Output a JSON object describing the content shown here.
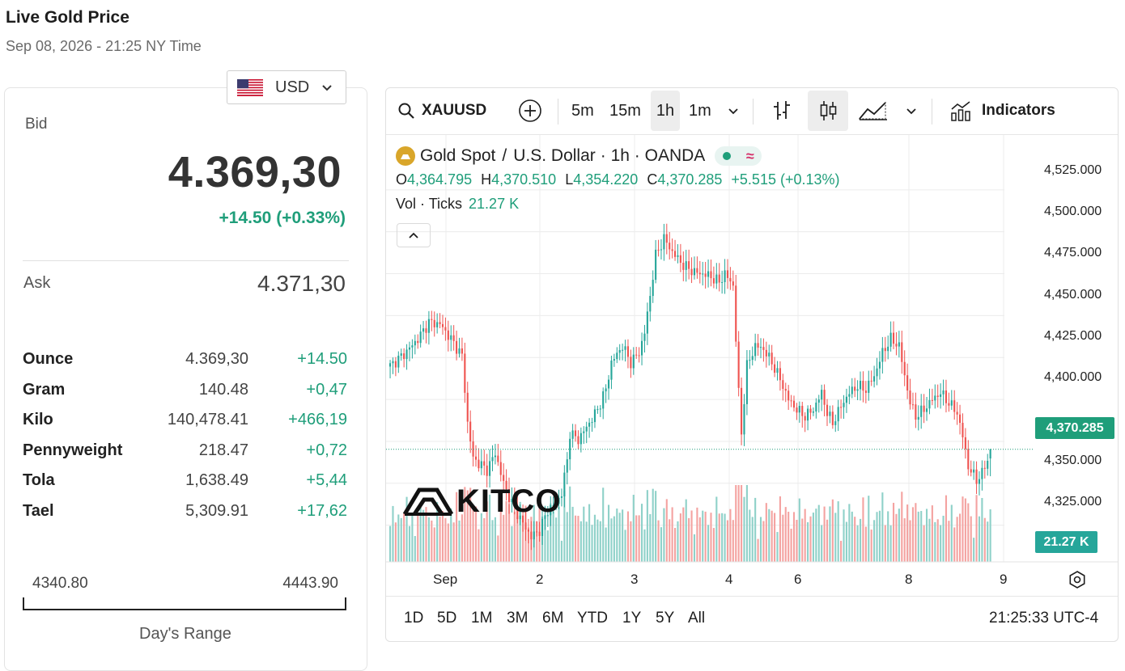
{
  "header": {
    "title": "Live Gold Price",
    "subtitle": "Sep 08, 2026 - 21:25 NY Time"
  },
  "currency": {
    "code": "USD"
  },
  "bid": {
    "label": "Bid",
    "value": "4.369,30",
    "change": "+14.50 (+0.33%)"
  },
  "ask": {
    "label": "Ask",
    "value": "4.371,30"
  },
  "units": [
    {
      "name": "Ounce",
      "price": "4.369,30",
      "change": "+14.50"
    },
    {
      "name": "Gram",
      "price": "140.48",
      "change": "+0,47"
    },
    {
      "name": "Kilo",
      "price": "140,478.41",
      "change": "+466,19"
    },
    {
      "name": "Pennyweight",
      "price": "218.47",
      "change": "+0,72"
    },
    {
      "name": "Tola",
      "price": "1,638.49",
      "change": "+5,44"
    },
    {
      "name": "Tael",
      "price": "5,309.91",
      "change": "+17,62"
    }
  ],
  "day_range": {
    "low": "4340.80",
    "high": "4443.90",
    "label": "Day's Range"
  },
  "chart": {
    "symbol": "XAUUSD",
    "intervals": [
      "5m",
      "15m",
      "1h",
      "1m"
    ],
    "active_interval": "1h",
    "indicators_label": "Indicators",
    "legend": {
      "name": "Gold Spot",
      "sep": "/",
      "quote": "U.S. Dollar",
      "meta": "· 1h · OANDA",
      "o_key": "O",
      "o": "4,364.795",
      "h_key": "H",
      "h": "4,370.510",
      "l_key": "L",
      "l": "4,354.220",
      "c_key": "C",
      "c": "4,370.285",
      "change": "+5.515 (+0.13%)",
      "vol_label": "Vol · Ticks",
      "vol_value": "21.27 K"
    },
    "y_axis": [
      "4,525.000",
      "4,500.000",
      "4,475.000",
      "4,450.000",
      "4,425.000",
      "4,400.000",
      "4,350.000",
      "4,325.000"
    ],
    "price_badge": "4,370.285",
    "vol_badge": "21.27 K",
    "x_axis": [
      "Sep",
      "2",
      "3",
      "4",
      "6",
      "8",
      "9"
    ],
    "ranges": [
      "1D",
      "5D",
      "1M",
      "3M",
      "6M",
      "YTD",
      "1Y",
      "5Y",
      "All"
    ],
    "clock": "21:25:33 UTC-4",
    "watermark": "KITCO",
    "colors": {
      "up": "#26a69a",
      "down": "#ef5350",
      "up_vol": "#8fd1c9",
      "down_vol": "#f4a3a1"
    }
  },
  "chart_data": {
    "type": "candlestick",
    "title": "Gold Spot / U.S. Dollar · 1h · OANDA",
    "xlabel": "",
    "ylabel": "",
    "ylim": [
      4318,
      4536
    ],
    "x_ticks": [
      "Sep",
      "2",
      "3",
      "4",
      "6",
      "8",
      "9"
    ],
    "anchors": [
      [
        0,
        4420
      ],
      [
        5,
        4427
      ],
      [
        10,
        4436
      ],
      [
        14,
        4446
      ],
      [
        18,
        4445
      ],
      [
        22,
        4436
      ],
      [
        26,
        4426
      ],
      [
        28,
        4386
      ],
      [
        30,
        4365
      ],
      [
        32,
        4362
      ],
      [
        35,
        4358
      ],
      [
        38,
        4368
      ],
      [
        41,
        4350
      ],
      [
        44,
        4338
      ],
      [
        48,
        4326
      ],
      [
        51,
        4318
      ],
      [
        54,
        4322
      ],
      [
        57,
        4334
      ],
      [
        60,
        4338
      ],
      [
        62,
        4344
      ],
      [
        64,
        4364
      ],
      [
        65,
        4380
      ],
      [
        68,
        4376
      ],
      [
        72,
        4386
      ],
      [
        75,
        4394
      ],
      [
        78,
        4406
      ],
      [
        80,
        4422
      ],
      [
        84,
        4432
      ],
      [
        87,
        4422
      ],
      [
        90,
        4428
      ],
      [
        92,
        4440
      ],
      [
        94,
        4462
      ],
      [
        96,
        4486
      ],
      [
        99,
        4496
      ],
      [
        102,
        4488
      ],
      [
        106,
        4480
      ],
      [
        110,
        4476
      ],
      [
        115,
        4474
      ],
      [
        119,
        4470
      ],
      [
        121,
        4475
      ],
      [
        124,
        4468
      ],
      [
        126,
        4404
      ],
      [
        127,
        4380
      ],
      [
        129,
        4420
      ],
      [
        132,
        4432
      ],
      [
        135,
        4430
      ],
      [
        138,
        4422
      ],
      [
        141,
        4412
      ],
      [
        144,
        4400
      ],
      [
        147,
        4394
      ],
      [
        150,
        4390
      ],
      [
        153,
        4394
      ],
      [
        156,
        4404
      ],
      [
        158,
        4392
      ],
      [
        160,
        4386
      ],
      [
        163,
        4396
      ],
      [
        166,
        4404
      ],
      [
        169,
        4408
      ],
      [
        172,
        4406
      ],
      [
        175,
        4414
      ],
      [
        178,
        4428
      ],
      [
        181,
        4436
      ],
      [
        184,
        4432
      ],
      [
        186,
        4414
      ],
      [
        188,
        4398
      ],
      [
        190,
        4390
      ],
      [
        193,
        4394
      ],
      [
        196,
        4400
      ],
      [
        199,
        4404
      ],
      [
        202,
        4398
      ],
      [
        205,
        4392
      ],
      [
        207,
        4378
      ],
      [
        209,
        4360
      ],
      [
        212,
        4352
      ],
      [
        214,
        4356
      ],
      [
        216,
        4364
      ],
      [
        217,
        4370.3
      ]
    ],
    "last": {
      "open": 4364.795,
      "high": 4370.51,
      "low": 4354.22,
      "close": 4370.285
    },
    "volume_last": "21.27 K"
  }
}
